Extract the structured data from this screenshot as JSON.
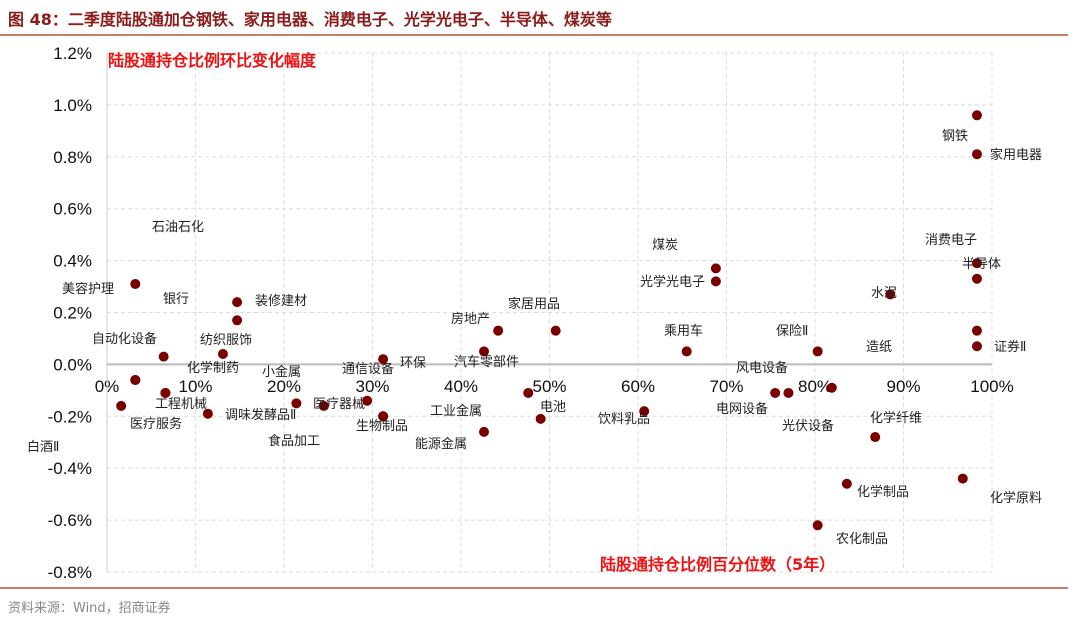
{
  "title": "图 48：二季度陆股通加仓钢铁、家用电器、消费电子、光学光电子、半导体、煤炭等",
  "source": "资料来源：Wind，招商证券",
  "chart_data": {
    "type": "scatter",
    "title": "",
    "ylabel": "陆股通持仓比例环比变化幅度",
    "xlabel": "陆股通持仓比例百分位数（5年）",
    "xlim": [
      0,
      100
    ],
    "ylim": [
      -0.8,
      1.2
    ],
    "x_ticks": [
      "0%",
      "10%",
      "20%",
      "30%",
      "40%",
      "50%",
      "60%",
      "70%",
      "80%",
      "90%",
      "100%"
    ],
    "y_ticks": [
      "1.2%",
      "1.0%",
      "0.8%",
      "0.6%",
      "0.4%",
      "0.2%",
      "0.0%",
      "-0.2%",
      "-0.4%",
      "-0.6%",
      "-0.8%"
    ],
    "grid": true,
    "marker_color": "#7a0000",
    "points": [
      {
        "name": "石油石化",
        "x": 3.2,
        "y": 0.31
      },
      {
        "name": "美容护理",
        "x": 6.4,
        "y": 0.03
      },
      {
        "name": "银行",
        "x": 14.7,
        "y": 0.17
      },
      {
        "name": "装修建材",
        "x": 14.7,
        "y": 0.24
      },
      {
        "name": "自动化设备",
        "x": 3.2,
        "y": -0.06
      },
      {
        "name": "纺织服饰",
        "x": 13.1,
        "y": 0.04
      },
      {
        "name": "化学制药",
        "x": 6.6,
        "y": -0.11
      },
      {
        "name": "工程机械",
        "x": 3.2,
        "y": -0.06
      },
      {
        "name": "医疗服务",
        "x": 6.6,
        "y": -0.11
      },
      {
        "name": "白酒Ⅱ",
        "x": 1.6,
        "y": -0.16
      },
      {
        "name": "调味发酵品Ⅱ",
        "x": 11.4,
        "y": -0.19
      },
      {
        "name": "小金属",
        "x": 31.2,
        "y": -0.2
      },
      {
        "name": "医疗器械",
        "x": 24.5,
        "y": -0.16
      },
      {
        "name": "食品加工",
        "x": 21.4,
        "y": -0.15
      },
      {
        "name": "生物制品",
        "x": 31.2,
        "y": -0.2
      },
      {
        "name": "通信设备",
        "x": 29.4,
        "y": -0.14
      },
      {
        "name": "环保",
        "x": 31.2,
        "y": 0.02
      },
      {
        "name": "房地产",
        "x": 44.2,
        "y": 0.13
      },
      {
        "name": "家居用品",
        "x": 50.7,
        "y": 0.13
      },
      {
        "name": "汽车零部件",
        "x": 42.6,
        "y": 0.05
      },
      {
        "name": "电池",
        "x": 47.6,
        "y": -0.11
      },
      {
        "name": "工业金属",
        "x": 49.0,
        "y": -0.21
      },
      {
        "name": "能源金属",
        "x": 42.6,
        "y": -0.26
      },
      {
        "name": "饮料乳品",
        "x": 60.7,
        "y": -0.18
      },
      {
        "name": "煤炭",
        "x": 68.8,
        "y": 0.37
      },
      {
        "name": "光学光电子",
        "x": 68.8,
        "y": 0.32
      },
      {
        "name": "乘用车",
        "x": 65.5,
        "y": 0.05
      },
      {
        "name": "保险Ⅱ",
        "x": 80.3,
        "y": 0.05
      },
      {
        "name": "风电设备",
        "x": 75.5,
        "y": -0.11
      },
      {
        "name": "电网设备",
        "x": 77.0,
        "y": -0.11
      },
      {
        "name": "光伏设备",
        "x": 81.9,
        "y": -0.09
      },
      {
        "name": "造纸",
        "x": 98.3,
        "y": 0.13
      },
      {
        "name": "水泥",
        "x": 88.5,
        "y": 0.27
      },
      {
        "name": "消费电子",
        "x": 98.3,
        "y": 0.39
      },
      {
        "name": "半导体",
        "x": 98.3,
        "y": 0.33
      },
      {
        "name": "证券Ⅱ",
        "x": 98.3,
        "y": 0.07
      },
      {
        "name": "钢铁",
        "x": 98.3,
        "y": 0.96
      },
      {
        "name": "家用电器",
        "x": 98.3,
        "y": 0.81
      },
      {
        "name": "化学纤维",
        "x": 86.8,
        "y": -0.28
      },
      {
        "name": "化学制品",
        "x": 83.6,
        "y": -0.46
      },
      {
        "name": "化学原料",
        "x": 96.7,
        "y": -0.44
      },
      {
        "name": "农化制品",
        "x": 80.3,
        "y": -0.62
      }
    ]
  }
}
